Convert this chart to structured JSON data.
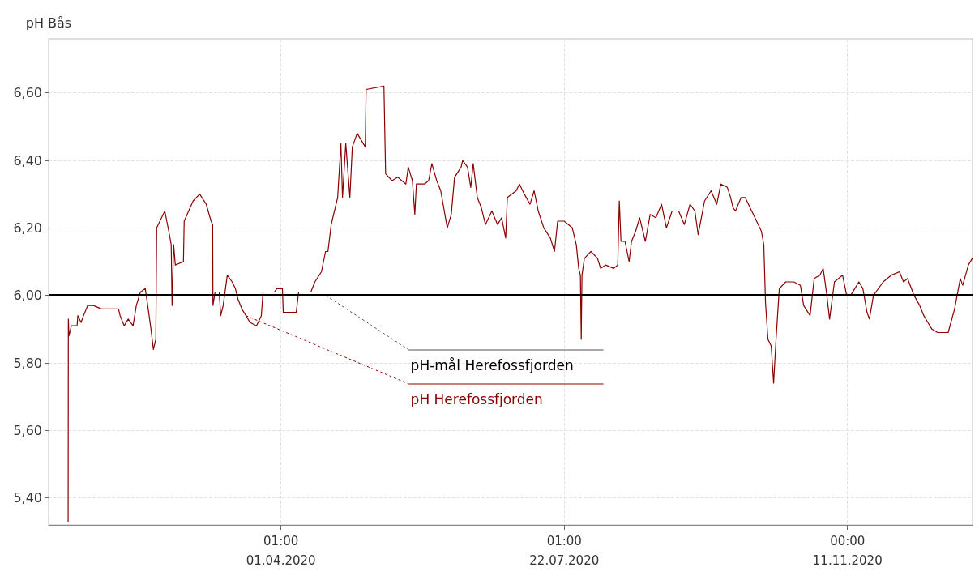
{
  "chart_data": {
    "type": "line",
    "ylabel": "pH Bås",
    "xlim": [
      "2019-12-31T05:00",
      "2020-12-30T10:00"
    ],
    "xticks": [
      {
        "value": "2020-04-01T01:00",
        "label": "01:00\n01.04.2020"
      },
      {
        "value": "2020-07-22T01:00",
        "label": "01:00\n22.07.2020"
      },
      {
        "value": "2020-11-11T00:00",
        "label": "00:00\n11.11.2020"
      }
    ],
    "ylim": [
      5.32,
      6.76
    ],
    "yticks": [
      {
        "value": 5.4,
        "label": "5,40"
      },
      {
        "value": 5.6,
        "label": "5,60"
      },
      {
        "value": 5.8,
        "label": "5,80"
      },
      {
        "value": 6.0,
        "label": "6,00"
      },
      {
        "value": 6.2,
        "label": "6,20"
      },
      {
        "value": 6.4,
        "label": "6,40"
      },
      {
        "value": 6.6,
        "label": "6,60"
      }
    ],
    "grid": true,
    "legend": false,
    "marker": "none",
    "line_style": "solid",
    "ref_lines": [
      {
        "axis": "y",
        "value": 6.0,
        "label": "pH-mål Herefossfjorden",
        "color": "#000000"
      }
    ],
    "series": [
      {
        "name": "pH Herefossfjorden",
        "color": "#8b0000",
        "x": [
          "2020-01-07T22:00",
          "2020-01-08T00:00",
          "2020-01-08T06:00",
          "2020-01-09T05:00",
          "2020-01-11T11:00",
          "2020-01-11T18:00",
          "2020-01-13T01:00",
          "2020-01-14T00:00",
          "2020-01-15T15:00",
          "2020-01-17T21:00",
          "2020-01-21T02:00",
          "2020-01-23T00:00",
          "2020-01-27T20:00",
          "2020-01-28T11:00",
          "2020-01-30T02:00",
          "2020-01-31T16:00",
          "2020-02-02T14:00",
          "2020-02-03T21:00",
          "2020-02-05T12:00",
          "2020-02-07T10:00",
          "2020-02-08T09:00",
          "2020-02-09T16:00",
          "2020-02-10T15:00",
          "2020-02-11T14:00",
          "2020-02-11T22:00",
          "2020-02-15T03:00",
          "2020-02-16T17:00",
          "2020-02-17T16:00",
          "2020-02-18T00:00",
          "2020-02-18T15:00",
          "2020-02-19T07:00",
          "2020-02-22T12:00",
          "2020-02-22T19:00",
          "2020-02-26T08:00",
          "2020-02-28T22:00",
          "2020-03-02T12:00",
          "2020-03-04T10:00",
          "2020-03-05T01:00",
          "2020-03-05T04:00",
          "2020-03-06T00:00",
          "2020-03-07T15:00",
          "2020-03-08T06:00",
          "2020-03-09T05:00",
          "2020-03-10T20:00",
          "2020-03-12T18:00",
          "2020-03-14T01:00",
          "2020-03-15T00:00",
          "2020-03-16T14:00",
          "2020-03-18T05:00",
          "2020-03-19T19:00",
          "2020-03-22T09:00",
          "2020-03-24T07:00",
          "2020-03-24T23:00",
          "2020-03-29T10:00",
          "2020-03-30T10:00",
          "2020-04-01T15:00",
          "2020-04-01T23:00",
          "2020-04-07T02:00",
          "2020-04-08T01:00",
          "2020-04-12T21:00",
          "2020-04-14T11:00",
          "2020-04-17T01:00",
          "2020-04-18T16:00",
          "2020-04-19T15:00",
          "2020-04-20T22:00",
          "2020-04-23T11:00",
          "2020-04-24T18:00",
          "2020-04-25T09:00",
          "2020-04-26T16:00",
          "2020-04-28T07:00",
          "2020-04-29T06:00",
          "2020-05-01T04:00",
          "2020-05-04T09:00",
          "2020-05-04T17:00",
          "2020-05-11T18:00",
          "2020-05-12T10:00",
          "2020-05-14T23:00",
          "2020-05-17T05:00",
          "2020-05-20T10:00",
          "2020-05-21T09:00",
          "2020-05-23T00:00",
          "2020-05-23T23:00",
          "2020-05-24T14:00",
          "2020-05-27T19:00",
          "2020-05-29T10:00",
          "2020-05-30T17:00",
          "2020-06-01T15:00",
          "2020-06-03T05:00",
          "2020-06-05T19:00",
          "2020-06-07T09:00",
          "2020-06-08T16:00",
          "2020-06-11T06:00",
          "2020-06-11T21:00",
          "2020-06-13T19:00",
          "2020-06-15T02:00",
          "2020-06-16T01:00",
          "2020-06-17T16:00",
          "2020-06-19T06:00",
          "2020-06-20T21:00",
          "2020-06-23T10:00",
          "2020-06-25T16:00",
          "2020-06-27T07:00",
          "2020-06-28T21:00",
          "2020-06-29T13:00",
          "2020-07-03T01:00",
          "2020-07-04T08:00",
          "2020-07-06T06:00",
          "2020-07-08T12:00",
          "2020-07-10T03:00",
          "2020-07-11T18:00",
          "2020-07-13T23:00",
          "2020-07-16T13:00",
          "2020-07-18T04:00",
          "2020-07-19T10:00",
          "2020-07-22T00:00",
          "2020-07-25T05:00",
          "2020-07-26T19:00",
          "2020-07-27T18:00",
          "2020-07-28T10:00",
          "2020-07-28T18:00",
          "2020-07-29T01:00",
          "2020-07-30T00:00",
          "2020-08-01T14:00",
          "2020-08-04T04:00",
          "2020-08-05T10:00",
          "2020-08-07T09:00",
          "2020-08-10T14:00",
          "2020-08-12T04:00",
          "2020-08-12T19:00",
          "2020-08-13T11:00",
          "2020-08-15T01:00",
          "2020-08-16T16:00",
          "2020-08-17T15:00",
          "2020-08-19T06:00",
          "2020-08-20T20:00",
          "2020-08-23T02:00",
          "2020-08-25T00:00",
          "2020-08-27T06:00",
          "2020-08-29T12:00",
          "2020-08-31T10:00",
          "2020-09-02T16:00",
          "2020-09-05T06:00",
          "2020-09-07T12:00",
          "2020-09-09T18:00",
          "2020-09-11T16:00",
          "2020-09-12T23:00",
          "2020-09-15T12:00",
          "2020-09-18T02:00",
          "2020-09-20T08:00",
          "2020-09-21T22:00",
          "2020-09-24T12:00",
          "2020-09-25T19:00",
          "2020-09-26T18:00",
          "2020-09-27T17:00",
          "2020-09-29T23:00",
          "2020-10-01T13:00",
          "2020-10-04T03:00",
          "2020-10-05T10:00",
          "2020-10-07T23:00",
          "2020-10-08T22:00",
          "2020-10-09T14:00",
          "2020-10-10T13:00",
          "2020-10-11T20:00",
          "2020-10-12T19:00",
          "2020-10-13T18:00",
          "2020-10-15T01:00",
          "2020-10-17T14:00",
          "2020-10-20T19:00",
          "2020-10-23T09:00",
          "2020-10-24T16:00",
          "2020-10-27T05:00",
          "2020-10-28T20:00",
          "2020-10-31T02:00",
          "2020-11-01T09:00",
          "2020-11-02T16:00",
          "2020-11-03T22:00",
          "2020-11-05T20:00",
          "2020-11-09T01:00",
          "2020-11-10T16:00",
          "2020-11-12T06:00",
          "2020-11-13T21:00",
          "2020-11-15T12:00",
          "2020-11-17T02:00",
          "2020-11-18T17:00",
          "2020-11-19T16:00",
          "2020-11-21T06:00",
          "2020-11-25T03:00",
          "2020-11-26T17:00",
          "2020-11-28T08:00",
          "2020-12-01T13:00",
          "2020-12-03T03:00",
          "2020-12-04T18:00",
          "2020-12-07T07:00",
          "2020-12-09T13:00",
          "2020-12-11T04:00",
          "2020-12-12T18:00",
          "2020-12-14T09:00",
          "2020-12-16T15:00",
          "2020-12-20T19:00",
          "2020-12-23T08:00",
          "2020-12-25T14:00",
          "2020-12-26T13:00",
          "2020-12-28T19:00",
          "2020-12-30T08:00"
        ],
        "values": [
          5.33,
          5.93,
          5.88,
          5.91,
          5.91,
          5.94,
          5.92,
          5.94,
          5.97,
          5.97,
          5.96,
          5.96,
          5.96,
          5.94,
          5.91,
          5.93,
          5.91,
          5.97,
          6.01,
          6.02,
          5.97,
          5.9,
          5.84,
          5.87,
          6.2,
          6.25,
          6.19,
          6.15,
          5.97,
          6.15,
          6.09,
          6.1,
          6.22,
          6.28,
          6.3,
          6.27,
          6.22,
          6.21,
          5.97,
          6.01,
          6.01,
          5.94,
          5.97,
          6.06,
          6.04,
          6.02,
          5.99,
          5.96,
          5.94,
          5.92,
          5.91,
          5.94,
          6.01,
          6.01,
          6.02,
          6.02,
          5.95,
          5.95,
          6.01,
          6.01,
          6.04,
          6.07,
          6.13,
          6.13,
          6.21,
          6.29,
          6.45,
          6.29,
          6.45,
          6.29,
          6.44,
          6.48,
          6.44,
          6.61,
          6.62,
          6.36,
          6.34,
          6.35,
          6.33,
          6.38,
          6.34,
          6.24,
          6.33,
          6.33,
          6.34,
          6.39,
          6.34,
          6.31,
          6.2,
          6.24,
          6.35,
          6.38,
          6.4,
          6.38,
          6.32,
          6.39,
          6.29,
          6.26,
          6.21,
          6.25,
          6.21,
          6.23,
          6.17,
          6.29,
          6.31,
          6.33,
          6.3,
          6.27,
          6.31,
          6.25,
          6.2,
          6.17,
          6.13,
          6.22,
          6.22,
          6.2,
          6.15,
          6.08,
          6.06,
          5.87,
          6.06,
          6.11,
          6.13,
          6.11,
          6.08,
          6.09,
          6.08,
          6.09,
          6.28,
          6.16,
          6.16,
          6.1,
          6.16,
          6.19,
          6.23,
          6.16,
          6.24,
          6.23,
          6.27,
          6.2,
          6.25,
          6.25,
          6.21,
          6.27,
          6.25,
          6.18,
          6.28,
          6.31,
          6.27,
          6.33,
          6.32,
          6.29,
          6.26,
          6.25,
          6.29,
          6.29,
          6.25,
          6.23,
          6.19,
          6.15,
          5.98,
          5.87,
          5.85,
          5.74,
          5.87,
          6.02,
          6.04,
          6.04,
          6.03,
          5.97,
          5.94,
          6.05,
          6.06,
          6.08,
          6.01,
          5.93,
          6.04,
          6.06,
          6.0,
          6.0,
          6.02,
          6.04,
          6.02,
          5.95,
          5.93,
          6.0,
          6.04,
          6.05,
          6.06,
          6.07,
          6.04,
          6.05,
          6.0,
          5.97,
          5.94,
          5.92,
          5.9,
          5.89,
          5.89,
          5.96,
          6.05,
          6.03,
          6.09,
          6.11
        ]
      }
    ]
  }
}
